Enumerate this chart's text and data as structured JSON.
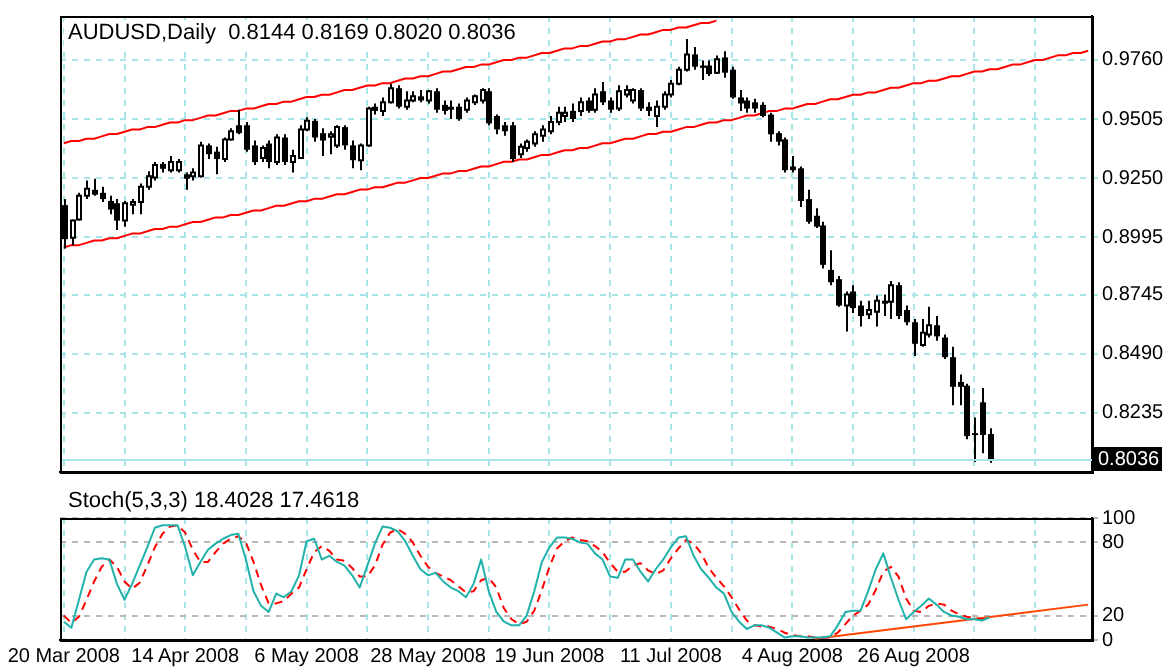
{
  "chart_data": [
    {
      "type": "candlestick",
      "title": "AUDUSD,Daily  0.8144 0.8169 0.8020 0.8036",
      "categories": [
        null,
        null,
        null,
        null,
        null,
        null,
        null,
        null,
        null,
        null,
        null,
        null,
        null,
        null,
        null,
        null,
        null,
        null,
        null,
        null,
        null,
        null,
        null,
        null,
        null,
        null,
        null,
        null,
        null,
        null,
        null,
        null,
        null,
        null,
        null,
        null,
        null,
        null,
        null,
        null,
        null,
        null,
        null,
        null,
        null,
        null,
        null,
        null,
        null,
        null,
        null,
        null,
        null,
        null,
        null,
        null,
        null,
        null,
        null,
        null,
        null,
        null,
        null,
        null,
        null,
        null,
        null,
        null,
        null,
        null,
        null,
        null,
        null,
        null,
        null,
        null,
        null,
        null,
        null,
        null,
        null,
        null,
        null,
        null,
        null,
        null,
        null,
        null,
        null,
        null,
        null,
        null,
        null,
        null,
        null,
        null,
        null,
        null,
        null,
        null,
        null,
        null,
        null,
        null,
        null,
        null,
        null,
        null,
        null,
        null,
        null,
        null,
        null,
        null,
        null,
        null,
        null,
        null,
        null,
        null,
        null,
        null,
        null,
        null,
        null,
        null,
        null,
        null,
        null,
        null,
        null,
        null,
        null,
        null,
        null,
        null
      ],
      "ohlc": [
        [
          0.9133,
          0.9159,
          0.8946,
          0.8986
        ],
        [
          0.8992,
          0.9071,
          0.896,
          0.9066
        ],
        [
          0.9071,
          0.9186,
          0.9066,
          0.9173
        ],
        [
          0.9173,
          0.9239,
          0.9159,
          0.9204
        ],
        [
          0.9199,
          0.9247,
          0.9173,
          0.9178
        ],
        [
          0.9186,
          0.9212,
          0.9146,
          0.9159
        ],
        [
          0.9151,
          0.9173,
          0.9093,
          0.9114
        ],
        [
          0.9141,
          0.9159,
          0.9026,
          0.9066
        ],
        [
          0.9066,
          0.9151,
          0.904,
          0.9141
        ],
        [
          0.9135,
          0.9159,
          0.9093,
          0.9146
        ],
        [
          0.9146,
          0.9226,
          0.9093,
          0.9212
        ],
        [
          0.9212,
          0.9279,
          0.9199,
          0.9258
        ],
        [
          0.9252,
          0.9319,
          0.9239,
          0.9306
        ],
        [
          0.9311,
          0.9319,
          0.9274,
          0.929
        ],
        [
          0.9284,
          0.9345,
          0.9274,
          0.9319
        ],
        [
          0.9284,
          0.9332,
          0.9274,
          0.9319
        ],
        [
          0.9266,
          0.9274,
          0.9199,
          0.9247
        ],
        [
          0.9258,
          0.9292,
          0.9239,
          0.9274
        ],
        [
          0.9258,
          0.9407,
          0.9252,
          0.9391
        ],
        [
          0.9391,
          0.9399,
          0.9332,
          0.9353
        ],
        [
          0.9364,
          0.9385,
          0.9266,
          0.9332
        ],
        [
          0.9332,
          0.9425,
          0.9319,
          0.9417
        ],
        [
          0.9417,
          0.9465,
          0.9412,
          0.9452
        ],
        [
          0.9478,
          0.9545,
          0.9439,
          0.9444
        ],
        [
          0.9478,
          0.9492,
          0.9364,
          0.9372
        ],
        [
          0.9391,
          0.9412,
          0.9306,
          0.9319
        ],
        [
          0.9337,
          0.9391,
          0.9319,
          0.938
        ],
        [
          0.9399,
          0.9412,
          0.9292,
          0.9319
        ],
        [
          0.9319,
          0.9439,
          0.9306,
          0.9425
        ],
        [
          0.9425,
          0.9439,
          0.9306,
          0.9319
        ],
        [
          0.9319,
          0.9372,
          0.9274,
          0.9345
        ],
        [
          0.9337,
          0.9478,
          0.9332,
          0.946
        ],
        [
          0.946,
          0.9513,
          0.9452,
          0.9497
        ],
        [
          0.9497,
          0.9505,
          0.9407,
          0.9425
        ],
        [
          0.9444,
          0.9465,
          0.9345,
          0.9412
        ],
        [
          0.9428,
          0.9452,
          0.9353,
          0.9439
        ],
        [
          0.9391,
          0.9478,
          0.938,
          0.947
        ],
        [
          0.947,
          0.9478,
          0.9372,
          0.9391
        ],
        [
          0.9391,
          0.9412,
          0.9292,
          0.9327
        ],
        [
          0.9327,
          0.9399,
          0.9284,
          0.9391
        ],
        [
          0.9391,
          0.9558,
          0.9385,
          0.955
        ],
        [
          0.9558,
          0.9572,
          0.9524,
          0.954
        ],
        [
          0.954,
          0.9598,
          0.9518,
          0.9577
        ],
        [
          0.9577,
          0.9657,
          0.9572,
          0.9638
        ],
        [
          0.9638,
          0.9651,
          0.955,
          0.9558
        ],
        [
          0.9558,
          0.9625,
          0.9545,
          0.9585
        ],
        [
          0.9585,
          0.9625,
          0.9577,
          0.9603
        ],
        [
          0.9603,
          0.963,
          0.9577,
          0.9585
        ],
        [
          0.9585,
          0.963,
          0.9572,
          0.9625
        ],
        [
          0.9625,
          0.9638,
          0.9532,
          0.9545
        ],
        [
          0.9566,
          0.9585,
          0.9524,
          0.954
        ],
        [
          0.9558,
          0.9585,
          0.9505,
          0.9545
        ],
        [
          0.9558,
          0.9572,
          0.9497,
          0.9505
        ],
        [
          0.9545,
          0.9598,
          0.9532,
          0.9585
        ],
        [
          0.9577,
          0.9611,
          0.9566,
          0.9603
        ],
        [
          0.9585,
          0.9638,
          0.9572,
          0.963
        ],
        [
          0.9625,
          0.9638,
          0.9478,
          0.9486
        ],
        [
          0.9518,
          0.9524,
          0.9439,
          0.946
        ],
        [
          0.9478,
          0.9492,
          0.9433,
          0.9452
        ],
        [
          0.9478,
          0.9492,
          0.9319,
          0.9332
        ],
        [
          0.9353,
          0.9399,
          0.9337,
          0.9385
        ],
        [
          0.938,
          0.9417,
          0.9364,
          0.9407
        ],
        [
          0.9399,
          0.9452,
          0.9385,
          0.9439
        ],
        [
          0.9433,
          0.9478,
          0.9407,
          0.946
        ],
        [
          0.9452,
          0.9518,
          0.9439,
          0.9492
        ],
        [
          0.9492,
          0.9558,
          0.9478,
          0.9532
        ],
        [
          0.9518,
          0.9558,
          0.9492,
          0.9532
        ],
        [
          0.954,
          0.9572,
          0.9492,
          0.9505
        ],
        [
          0.954,
          0.9598,
          0.9518,
          0.9577
        ],
        [
          0.9585,
          0.9598,
          0.9532,
          0.954
        ],
        [
          0.9545,
          0.9638,
          0.9532,
          0.9611
        ],
        [
          0.9625,
          0.9665,
          0.9566,
          0.9577
        ],
        [
          0.9585,
          0.9598,
          0.9532,
          0.9545
        ],
        [
          0.955,
          0.9651,
          0.954,
          0.9625
        ],
        [
          0.9611,
          0.9651,
          0.9598,
          0.963
        ],
        [
          0.9585,
          0.9638,
          0.9572,
          0.963
        ],
        [
          0.963,
          0.9638,
          0.954,
          0.955
        ],
        [
          0.9558,
          0.9577,
          0.9518,
          0.954
        ],
        [
          0.9518,
          0.9585,
          0.947,
          0.9558
        ],
        [
          0.9558,
          0.9625,
          0.9545,
          0.9611
        ],
        [
          0.9611,
          0.9673,
          0.9598,
          0.9657
        ],
        [
          0.9657,
          0.9731,
          0.9651,
          0.9718
        ],
        [
          0.9718,
          0.9851,
          0.971,
          0.9784
        ],
        [
          0.9784,
          0.9816,
          0.9718,
          0.9731
        ],
        [
          0.9736,
          0.9758,
          0.9673,
          0.9726
        ],
        [
          0.9736,
          0.9758,
          0.9691,
          0.9699
        ],
        [
          0.9705,
          0.9779,
          0.9699,
          0.9763
        ],
        [
          0.9771,
          0.9798,
          0.9683,
          0.9705
        ],
        [
          0.9718,
          0.9731,
          0.9593,
          0.9598
        ],
        [
          0.9598,
          0.963,
          0.954,
          0.9572
        ],
        [
          0.9585,
          0.9598,
          0.9532,
          0.955
        ],
        [
          0.9577,
          0.9593,
          0.9532,
          0.955
        ],
        [
          0.9566,
          0.9577,
          0.9513,
          0.9518
        ],
        [
          0.9524,
          0.9532,
          0.9407,
          0.9439
        ],
        [
          0.9444,
          0.9452,
          0.9391,
          0.9407
        ],
        [
          0.9417,
          0.9425,
          0.9274,
          0.9284
        ],
        [
          0.93,
          0.9345,
          0.9274,
          0.9284
        ],
        [
          0.9292,
          0.93,
          0.9125,
          0.9151
        ],
        [
          0.9159,
          0.9199,
          0.9053,
          0.9061
        ],
        [
          0.9087,
          0.9119,
          0.9034,
          0.904
        ],
        [
          0.9045,
          0.9061,
          0.8859,
          0.8875
        ],
        [
          0.8853,
          0.8938,
          0.8787,
          0.88
        ],
        [
          0.8813,
          0.8827,
          0.8694,
          0.8699
        ],
        [
          0.8699,
          0.876,
          0.8587,
          0.8747
        ],
        [
          0.876,
          0.8787,
          0.8667,
          0.8688
        ],
        [
          0.8699,
          0.872,
          0.8609,
          0.8654
        ],
        [
          0.8662,
          0.872,
          0.8641,
          0.868
        ],
        [
          0.8672,
          0.8742,
          0.8609,
          0.872
        ],
        [
          0.872,
          0.8747,
          0.8654,
          0.8707
        ],
        [
          0.8715,
          0.8805,
          0.8641,
          0.8787
        ],
        [
          0.8787,
          0.88,
          0.8641,
          0.8654
        ],
        [
          0.868,
          0.8699,
          0.8614,
          0.8627
        ],
        [
          0.8627,
          0.8641,
          0.8481,
          0.8534
        ],
        [
          0.8529,
          0.8641,
          0.8521,
          0.8582
        ],
        [
          0.8574,
          0.8694,
          0.8561,
          0.8614
        ],
        [
          0.8614,
          0.8654,
          0.8547,
          0.8566
        ],
        [
          0.8561,
          0.8574,
          0.8468,
          0.8476
        ],
        [
          0.8476,
          0.8521,
          0.8268,
          0.8348
        ],
        [
          0.8369,
          0.8401,
          0.8268,
          0.8348
        ],
        [
          0.8353,
          0.8361,
          0.8122,
          0.8135
        ],
        [
          0.8148,
          0.8215,
          0.8023,
          0.814
        ],
        [
          0.8281,
          0.8343,
          0.8061,
          0.814
        ],
        [
          0.8144,
          0.8169,
          0.802,
          0.8036
        ],
        null,
        null,
        null,
        null,
        null,
        null,
        null,
        null,
        null,
        null,
        null,
        null,
        null
      ],
      "series": [
        {
          "type": "line",
          "color": "#ff0000",
          "values": [
            0.94,
            0.941,
            0.941,
            0.942,
            0.942,
            0.943,
            0.944,
            0.944,
            0.945,
            0.946,
            0.946,
            0.947,
            0.947,
            0.948,
            0.949,
            0.949,
            0.95,
            0.95,
            0.951,
            0.952,
            0.952,
            0.953,
            0.954,
            0.954,
            0.955,
            0.955,
            0.956,
            0.957,
            0.957,
            0.958,
            0.958,
            0.959,
            0.96,
            0.96,
            0.961,
            0.961,
            0.962,
            0.963,
            0.963,
            0.964,
            0.965,
            0.965,
            0.966,
            0.966,
            0.967,
            0.968,
            0.968,
            0.969,
            0.969,
            0.97,
            0.971,
            0.971,
            0.972,
            0.973,
            0.973,
            0.974,
            0.974,
            0.975,
            0.976,
            0.976,
            0.977,
            0.977,
            0.978,
            0.979,
            0.979,
            0.98,
            0.981,
            0.981,
            0.982,
            0.982,
            0.983,
            0.984,
            0.984,
            0.985,
            0.985,
            0.986,
            0.987,
            0.987,
            0.988,
            0.989,
            0.989,
            0.99,
            0.99,
            0.991,
            0.992,
            0.992,
            0.993,
            null,
            null,
            null,
            null,
            null,
            null,
            null,
            null,
            null,
            null,
            null,
            null,
            null,
            null,
            null,
            null,
            null,
            null,
            null,
            null,
            null,
            null,
            null,
            null,
            null,
            null,
            null,
            null,
            null,
            null,
            null,
            null,
            null,
            null,
            null,
            null,
            null,
            null,
            null,
            null,
            null,
            null,
            null,
            null,
            null,
            null,
            null,
            null,
            null
          ]
        },
        {
          "type": "line",
          "color": "#ff0000",
          "values": [
            0.895,
            0.896,
            0.896,
            0.897,
            0.898,
            0.898,
            0.899,
            0.899,
            0.9,
            0.901,
            0.901,
            0.902,
            0.903,
            0.903,
            0.904,
            0.904,
            0.905,
            0.906,
            0.906,
            0.907,
            0.908,
            0.908,
            0.909,
            0.909,
            0.91,
            0.911,
            0.911,
            0.912,
            0.913,
            0.913,
            0.914,
            0.915,
            0.915,
            0.916,
            0.916,
            0.917,
            0.918,
            0.918,
            0.919,
            0.92,
            0.92,
            0.921,
            0.921,
            0.922,
            0.923,
            0.923,
            0.924,
            0.925,
            0.925,
            0.926,
            0.927,
            0.927,
            0.928,
            0.928,
            0.929,
            0.93,
            0.93,
            0.931,
            0.932,
            0.932,
            0.933,
            0.933,
            0.934,
            0.935,
            0.935,
            0.936,
            0.937,
            0.937,
            0.938,
            0.938,
            0.939,
            0.94,
            0.94,
            0.941,
            0.942,
            0.942,
            0.943,
            0.944,
            0.944,
            0.945,
            0.945,
            0.946,
            0.947,
            0.947,
            0.948,
            0.949,
            0.949,
            0.95,
            0.95,
            0.951,
            0.952,
            0.952,
            0.953,
            0.954,
            0.954,
            0.955,
            0.955,
            0.956,
            0.957,
            0.957,
            0.958,
            0.959,
            0.959,
            0.96,
            0.961,
            0.961,
            0.962,
            0.962,
            0.963,
            0.964,
            0.964,
            0.965,
            0.966,
            0.966,
            0.967,
            0.967,
            0.968,
            0.969,
            0.969,
            0.97,
            0.971,
            0.971,
            0.972,
            0.972,
            0.973,
            0.974,
            0.974,
            0.975,
            0.976,
            0.976,
            0.977,
            0.978,
            0.978,
            0.979,
            0.979,
            0.98
          ]
        }
      ],
      "ylim": [
        0.798,
        0.995
      ],
      "yticks": [
        {
          "value": 0.8235,
          "label": "0.8235"
        },
        {
          "value": 0.849,
          "label": "0.8490"
        },
        {
          "value": 0.8745,
          "label": "0.8745"
        },
        {
          "value": 0.8995,
          "label": "0.8995"
        },
        {
          "value": 0.925,
          "label": "0.9250"
        },
        {
          "value": 0.9505,
          "label": "0.9505"
        },
        {
          "value": 0.976,
          "label": "0.9760"
        }
      ],
      "ref_lines": [
        {
          "axis": "y",
          "value": 0.8036,
          "label": "0.8036",
          "color": "#a8e4e8"
        }
      ],
      "grid": true,
      "tick_labels": "y"
    },
    {
      "type": "line",
      "title": "Stoch(5,3,3) 18.4028 17.4618",
      "categories": [
        "20 Mar 2008",
        null,
        null,
        null,
        null,
        null,
        null,
        null,
        null,
        null,
        null,
        null,
        null,
        null,
        null,
        null,
        "14 Apr 2008",
        null,
        null,
        null,
        null,
        null,
        null,
        null,
        null,
        null,
        null,
        null,
        null,
        null,
        null,
        null,
        "6 May 2008",
        null,
        null,
        null,
        null,
        null,
        null,
        null,
        null,
        null,
        null,
        null,
        null,
        null,
        null,
        null,
        "28 May 2008",
        null,
        null,
        null,
        null,
        null,
        null,
        null,
        null,
        null,
        null,
        null,
        null,
        null,
        null,
        null,
        "19 Jun 2008",
        null,
        null,
        null,
        null,
        null,
        null,
        null,
        null,
        null,
        null,
        null,
        null,
        null,
        null,
        null,
        "11 Jul 2008",
        null,
        null,
        null,
        null,
        null,
        null,
        null,
        null,
        null,
        null,
        null,
        null,
        null,
        null,
        null,
        "4 Aug 2008",
        null,
        null,
        null,
        null,
        null,
        null,
        null,
        null,
        null,
        null,
        null,
        null,
        null,
        null,
        null,
        "26 Aug 2008",
        null,
        null,
        null,
        null,
        null,
        null,
        null,
        null,
        null,
        null,
        null,
        null,
        null,
        null,
        null,
        null,
        null,
        null,
        null,
        null,
        null,
        null,
        null
      ],
      "series": [
        {
          "color": "#20b2aa",
          "line_style": "solid",
          "values": [
            15,
            10,
            33,
            56,
            66,
            67,
            66,
            46,
            33,
            46,
            61,
            76,
            92,
            94,
            94,
            94,
            76,
            53,
            64,
            74,
            79,
            83,
            86,
            87,
            66,
            40,
            28,
            23,
            38,
            35,
            40,
            53,
            81,
            83,
            66,
            69,
            64,
            61,
            53,
            43,
            61,
            79,
            93,
            92,
            89,
            81,
            69,
            58,
            53,
            55,
            48,
            43,
            40,
            35,
            46,
            66,
            40,
            23,
            15,
            12,
            12,
            20,
            40,
            64,
            76,
            84,
            84,
            83,
            80,
            79,
            71,
            66,
            52,
            51,
            66,
            66,
            56,
            48,
            58,
            66,
            76,
            84,
            85,
            69,
            58,
            51,
            43,
            38,
            23,
            15,
            9,
            12,
            12,
            10,
            6,
            2,
            3,
            3,
            2,
            2,
            2,
            3,
            12,
            23,
            24,
            24,
            40,
            58,
            71,
            51,
            33,
            17,
            23,
            28,
            34,
            29,
            23,
            20,
            19,
            17,
            17,
            16,
            18.4028,
            null,
            null,
            null,
            null,
            null,
            null,
            null,
            null,
            null,
            null,
            null,
            null,
            null
          ]
        },
        {
          "color": "#ff0000",
          "line_style": "dashed",
          "values": [
            20,
            14,
            19,
            33,
            48,
            60,
            66,
            60,
            48,
            42,
            47,
            61,
            76,
            87,
            93,
            94,
            88,
            74,
            64,
            64,
            72,
            79,
            83,
            85,
            80,
            64,
            45,
            30,
            30,
            32,
            38,
            43,
            58,
            72,
            77,
            73,
            66,
            65,
            59,
            52,
            52,
            61,
            78,
            88,
            91,
            87,
            80,
            69,
            60,
            55,
            52,
            49,
            44,
            39,
            40,
            49,
            51,
            43,
            26,
            17,
            13,
            15,
            24,
            41,
            60,
            75,
            81,
            84,
            82,
            81,
            77,
            72,
            63,
            56,
            56,
            61,
            63,
            57,
            54,
            57,
            67,
            75,
            82,
            79,
            71,
            59,
            51,
            44,
            35,
            25,
            16,
            12,
            11,
            11,
            9,
            6,
            4,
            3,
            3,
            2,
            2,
            2,
            6,
            13,
            20,
            24,
            29,
            41,
            56,
            60,
            52,
            34,
            24,
            23,
            28,
            30,
            29,
            24,
            21,
            19,
            18,
            17,
            17.4618,
            null,
            null,
            null,
            null,
            null,
            null,
            null,
            null,
            null,
            null,
            null,
            null,
            null
          ]
        },
        {
          "color": "#ff4500",
          "line_style": "solid",
          "values": [
            null,
            null,
            null,
            null,
            null,
            null,
            null,
            null,
            null,
            null,
            null,
            null,
            null,
            null,
            null,
            null,
            null,
            null,
            null,
            null,
            null,
            null,
            null,
            null,
            null,
            null,
            null,
            null,
            null,
            null,
            null,
            null,
            null,
            null,
            null,
            null,
            null,
            null,
            null,
            null,
            null,
            null,
            null,
            null,
            null,
            null,
            null,
            null,
            null,
            null,
            null,
            null,
            null,
            null,
            null,
            null,
            null,
            null,
            null,
            null,
            null,
            null,
            null,
            null,
            null,
            null,
            null,
            null,
            null,
            null,
            null,
            null,
            null,
            null,
            null,
            null,
            null,
            null,
            null,
            null,
            null,
            null,
            null,
            null,
            null,
            null,
            null,
            null,
            null,
            null,
            null,
            null,
            null,
            null,
            null,
            null,
            null,
            null,
            null,
            1,
            null,
            null,
            null,
            null,
            null,
            null,
            null,
            null,
            null,
            null,
            null,
            null,
            null,
            null,
            null,
            null,
            null,
            null,
            null,
            null,
            null,
            null,
            null,
            null,
            null,
            null,
            null,
            null,
            null,
            null,
            null,
            null,
            null,
            null,
            null,
            29
          ]
        }
      ],
      "ylim": [
        0,
        100
      ],
      "yticks": [
        0,
        20,
        80,
        100
      ],
      "grid": true
    }
  ]
}
